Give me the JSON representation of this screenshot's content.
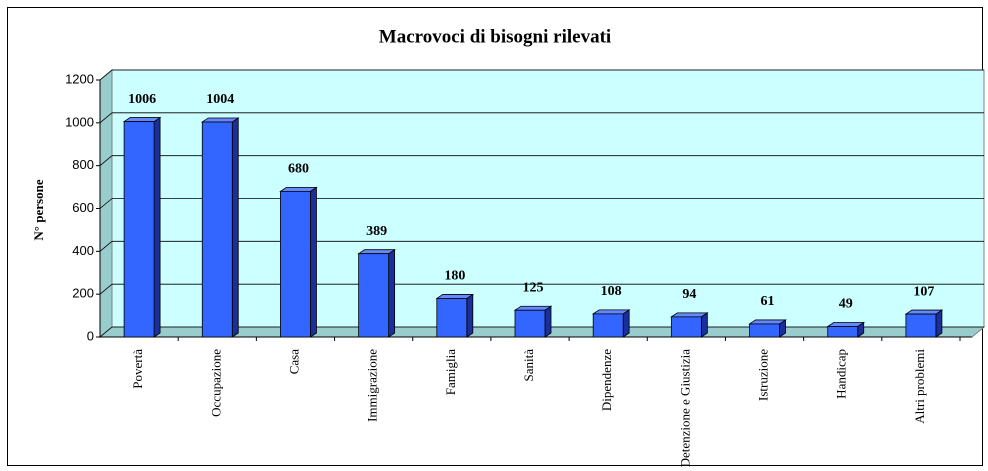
{
  "chart_data": {
    "type": "bar",
    "title": "Macrovoci di bisogni rilevati",
    "y_label": "N° persone",
    "categories": [
      "Povertà",
      "Occupazione",
      "Casa",
      "Immigrazione",
      "Famiglia",
      "Sanità",
      "Dipendenze",
      "Detenzione e Giustizia",
      "Istruzione",
      "Handicap",
      "Altri problemi"
    ],
    "values": [
      1006,
      1004,
      680,
      389,
      180,
      125,
      108,
      94,
      61,
      49,
      107
    ],
    "color": "#3366ff",
    "ylim": [
      0,
      1200
    ],
    "yticks": [
      0,
      200,
      400,
      600,
      800,
      1000,
      1200
    ],
    "grid": true
  }
}
